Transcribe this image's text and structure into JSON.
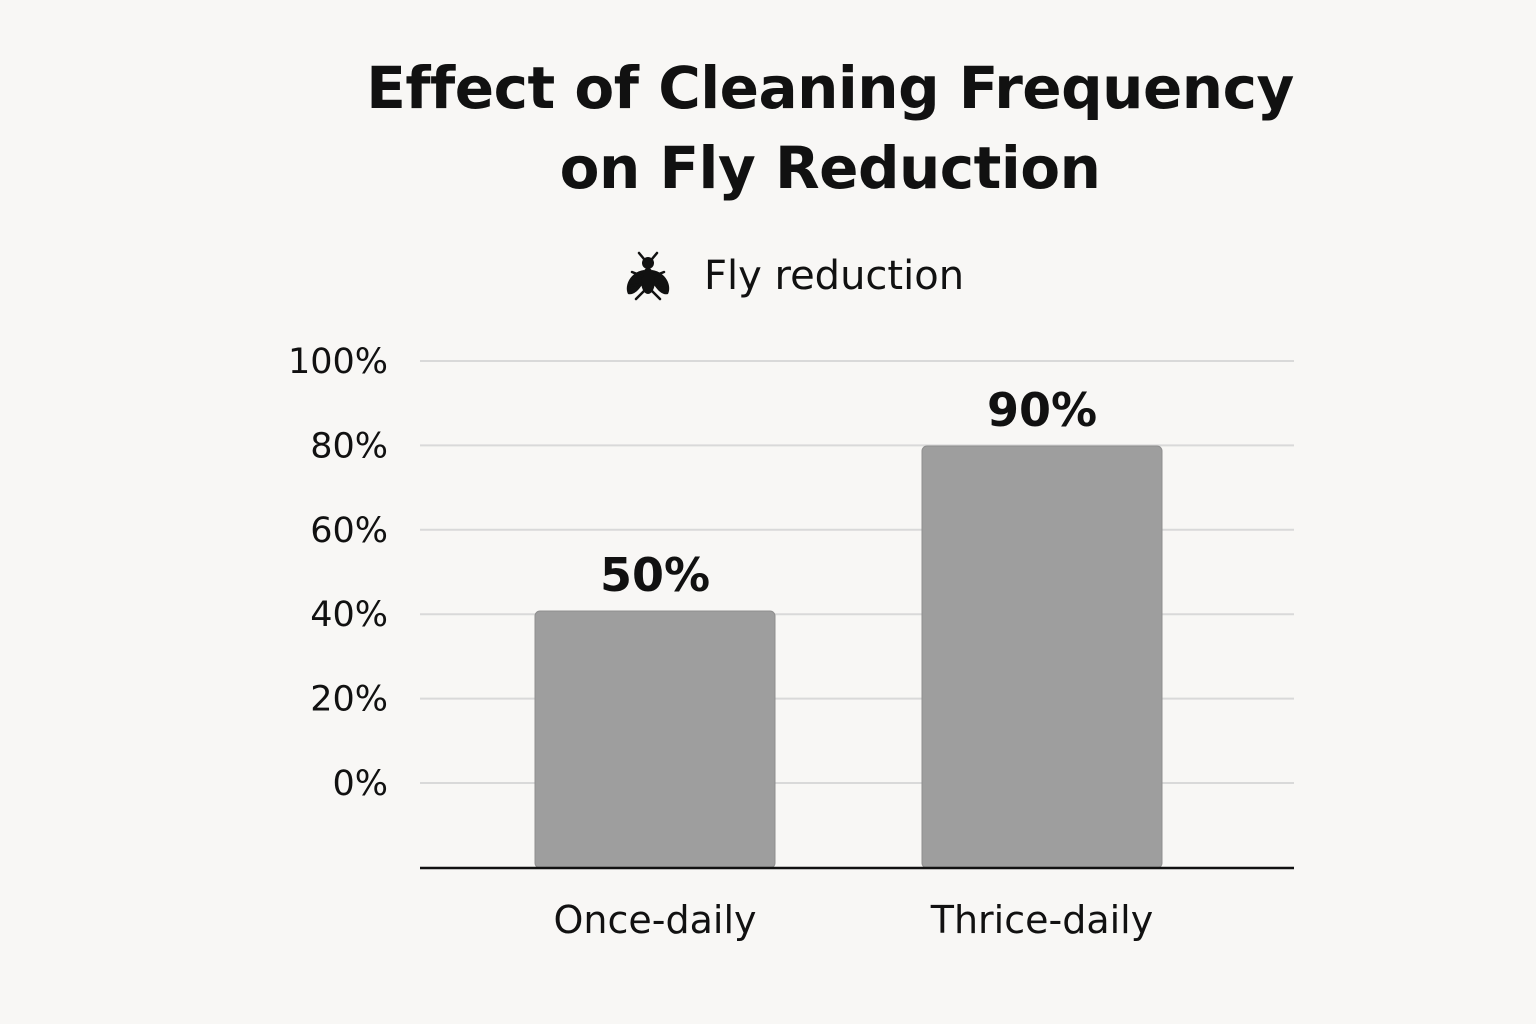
{
  "chart_data": {
    "type": "bar",
    "title_lines": [
      "Effect of Cleaning Frequency",
      "on Fly Reduction"
    ],
    "legend": {
      "icon": "fly-icon",
      "label": "Fly reduction",
      "placement": "top-center"
    },
    "categories": [
      "Once-daily",
      "Thrice-daily"
    ],
    "series": [
      {
        "name": "Fly reduction",
        "values": [
          50,
          90
        ],
        "data_labels": [
          "50%",
          "90%"
        ],
        "color": "#9e9e9e"
      }
    ],
    "y_ticks": [
      {
        "value": 0,
        "label": "0%"
      },
      {
        "value": 20,
        "label": "20%"
      },
      {
        "value": 40,
        "label": "40%"
      },
      {
        "value": 60,
        "label": "60%"
      },
      {
        "value": 80,
        "label": "80%"
      },
      {
        "value": 100,
        "label": "100%"
      }
    ],
    "ylim": [
      0,
      100
    ],
    "grid": true,
    "colors": {
      "bar": "#9e9e9e",
      "bar_stroke": "#8f8f8f",
      "grid": "#d9d9d9",
      "axis": "#111111",
      "background": "#f8f7f5",
      "text": "#111111"
    }
  }
}
